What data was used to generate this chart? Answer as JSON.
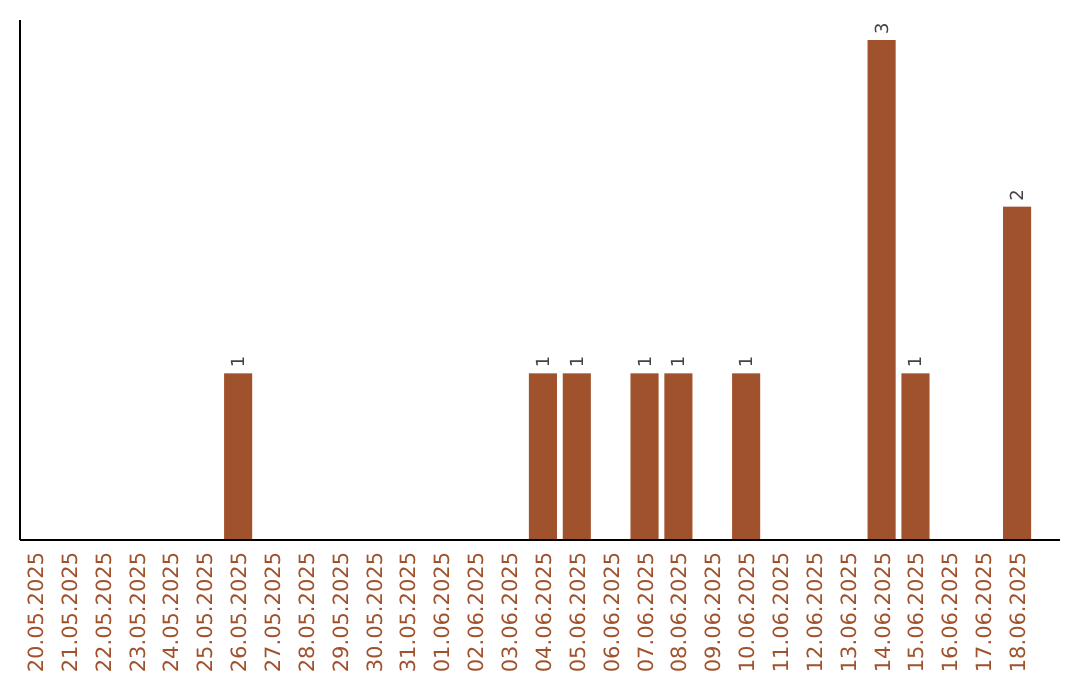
{
  "chart_data": {
    "type": "bar",
    "categories": [
      "20.05.2025",
      "21.05.2025",
      "22.05.2025",
      "23.05.2025",
      "24.05.2025",
      "25.05.2025",
      "26.05.2025",
      "27.05.2025",
      "28.05.2025",
      "29.05.2025",
      "30.05.2025",
      "31.05.2025",
      "01.06.2025",
      "02.06.2025",
      "03.06.2025",
      "04.06.2025",
      "05.06.2025",
      "06.06.2025",
      "07.06.2025",
      "08.06.2025",
      "09.06.2025",
      "10.06.2025",
      "11.06.2025",
      "12.06.2025",
      "13.06.2025",
      "14.06.2025",
      "15.06.2025",
      "16.06.2025",
      "17.06.2025",
      "18.06.2025"
    ],
    "values": [
      null,
      null,
      null,
      null,
      null,
      null,
      1,
      null,
      null,
      null,
      null,
      null,
      null,
      null,
      null,
      1,
      1,
      null,
      1,
      1,
      null,
      1,
      null,
      null,
      null,
      3,
      1,
      null,
      null,
      2
    ],
    "color": "#a0522d",
    "ylim": [
      0,
      3.12
    ],
    "data_labels": true
  }
}
